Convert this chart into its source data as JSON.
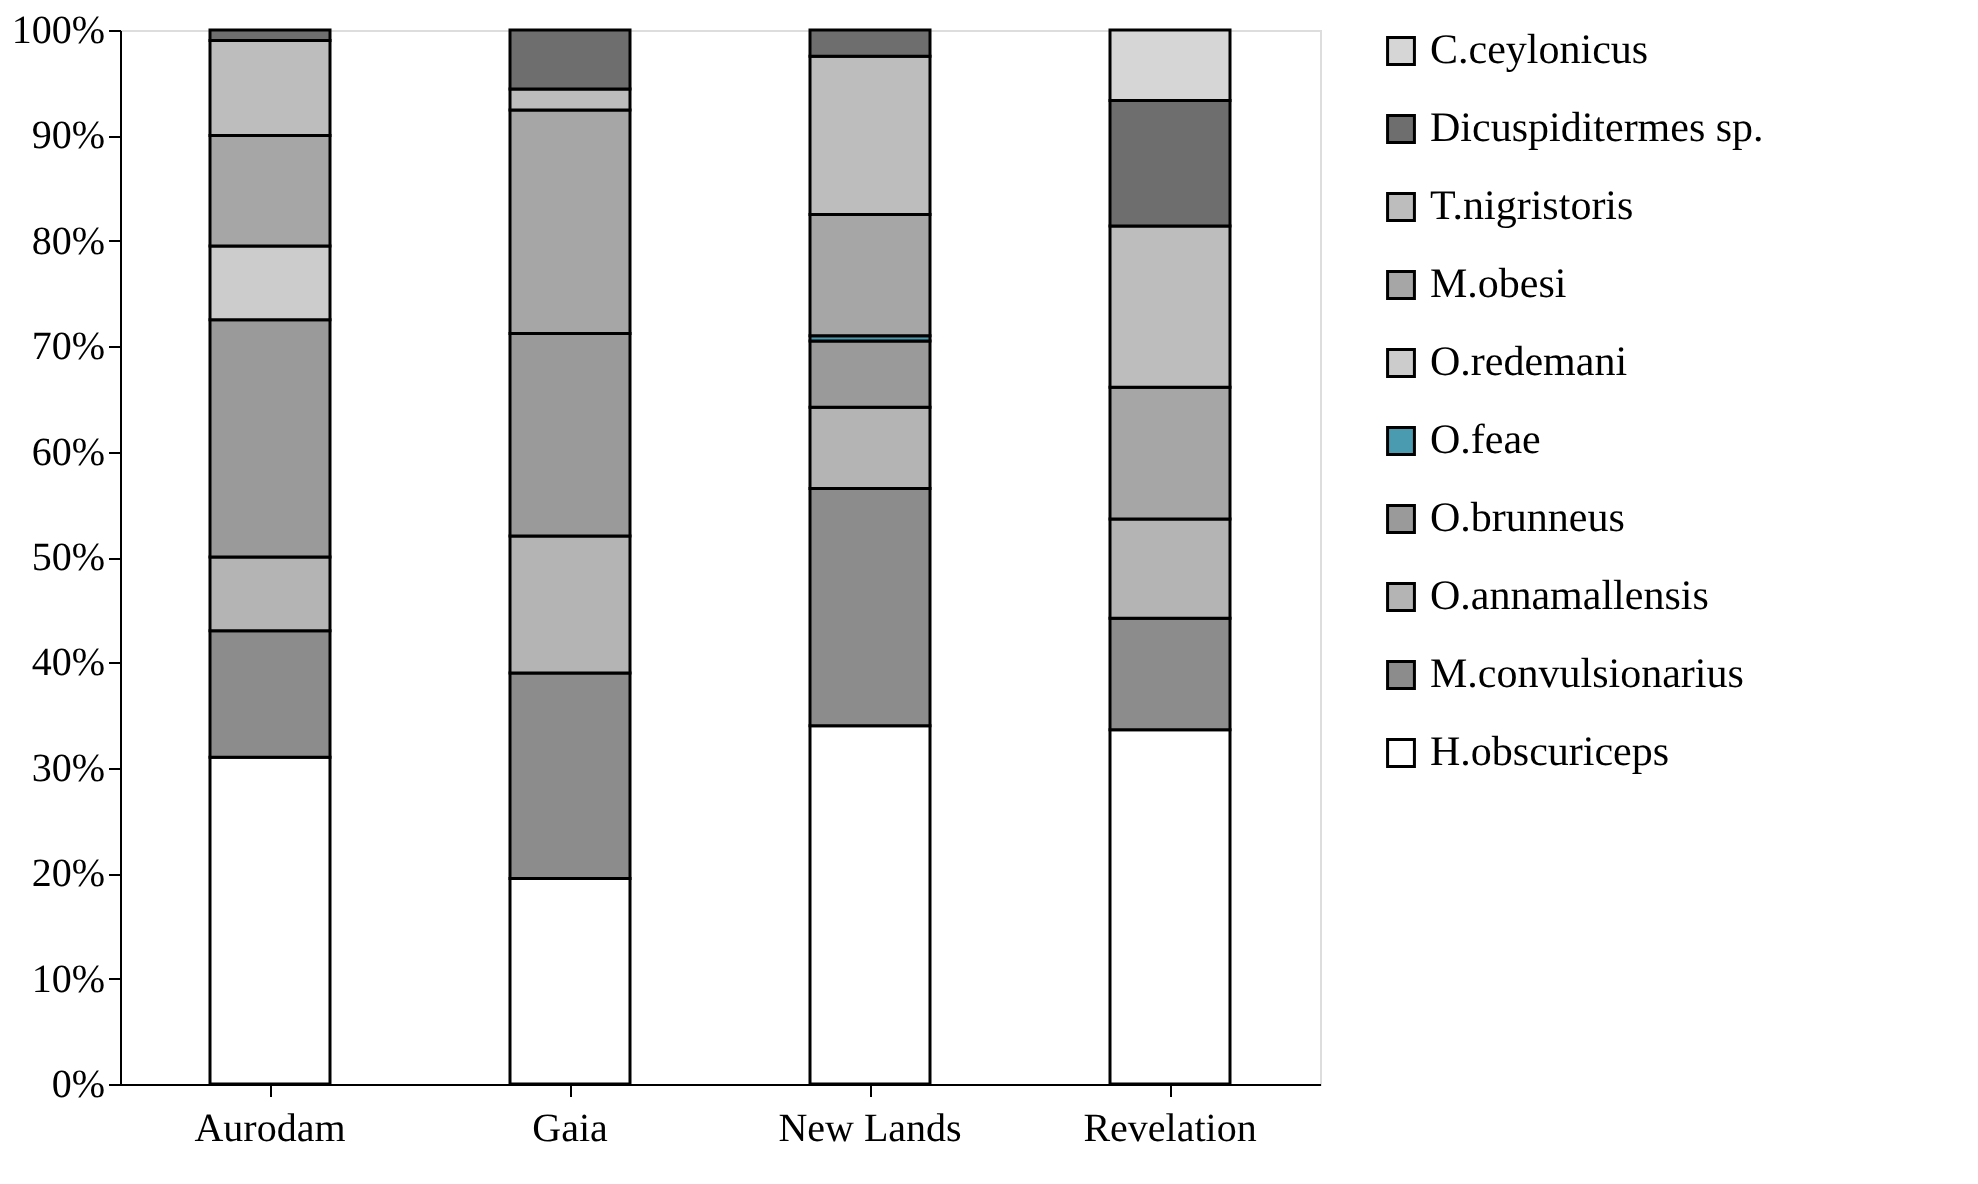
{
  "chart_data": {
    "type": "bar",
    "stacked": true,
    "legend": "right",
    "grid": false,
    "categories": [
      "Aurodam",
      "Gaia",
      "New Lands",
      "Revelation"
    ],
    "ylim": [
      0,
      100
    ],
    "yticks": [
      {
        "value": 0,
        "label": "0%"
      },
      {
        "value": 10,
        "label": "10%"
      },
      {
        "value": 20,
        "label": "20%"
      },
      {
        "value": 30,
        "label": "30%"
      },
      {
        "value": 40,
        "label": "40%"
      },
      {
        "value": 50,
        "label": "50%"
      },
      {
        "value": 60,
        "label": "60%"
      },
      {
        "value": 70,
        "label": "70%"
      },
      {
        "value": 80,
        "label": "80%"
      },
      {
        "value": 90,
        "label": "90%"
      },
      {
        "value": 100,
        "label": "100%"
      }
    ],
    "series": [
      {
        "name": "H.obscuriceps",
        "color": "#ffffff",
        "values": [
          31,
          19.5,
          34,
          33.6
        ]
      },
      {
        "name": "M.convulsionarius",
        "color": "#8c8c8c",
        "values": [
          12,
          19.5,
          22.5,
          10.6
        ]
      },
      {
        "name": "O.annamallensis",
        "color": "#b4b4b4",
        "values": [
          7,
          13,
          7.7,
          9.4
        ]
      },
      {
        "name": "O.brunneus",
        "color": "#9a9a9a",
        "values": [
          22.5,
          19.2,
          6.3,
          null
        ]
      },
      {
        "name": "O.feae",
        "color": "#4a9bb0",
        "values": [
          null,
          null,
          0.5,
          null
        ]
      },
      {
        "name": "O.redemani",
        "color": "#cccccc",
        "values": [
          7,
          null,
          null,
          null
        ]
      },
      {
        "name": "M.obesi",
        "color": "#a6a6a6",
        "values": [
          10.5,
          21.2,
          11.5,
          12.5
        ]
      },
      {
        "name": "T.nigristoris",
        "color": "#bdbdbd",
        "values": [
          9,
          2,
          15,
          15.3
        ]
      },
      {
        "name": "Dicuspiditermes sp.",
        "color": "#6e6e6e",
        "values": [
          1,
          5.6,
          2.5,
          11.9
        ]
      },
      {
        "name": "C.ceylonicus",
        "color": "#d6d6d6",
        "values": [
          null,
          null,
          null,
          6.7
        ]
      }
    ]
  }
}
